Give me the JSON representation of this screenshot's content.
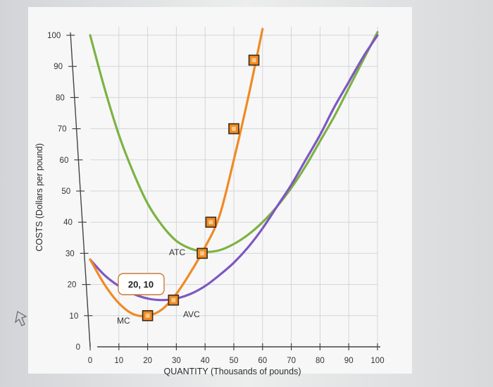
{
  "chart_data": {
    "type": "line",
    "xlabel": "QUANTITY (Thousands of pounds)",
    "ylabel": "COSTS (Dollars per pound)",
    "xlim": [
      0,
      100
    ],
    "ylim": [
      0,
      100
    ],
    "x_ticks": [
      0,
      10,
      20,
      30,
      40,
      50,
      60,
      70,
      80,
      90,
      100
    ],
    "y_ticks": [
      0,
      10,
      20,
      30,
      40,
      50,
      60,
      70,
      80,
      90,
      100
    ],
    "grid": true,
    "series": [
      {
        "name": "ATC",
        "color": "#7cb342",
        "x": [
          0,
          5,
          10,
          15,
          20,
          25,
          30,
          35,
          40,
          45,
          50,
          55,
          60,
          65,
          70,
          75,
          80,
          85,
          90,
          95,
          100
        ],
        "y": [
          100,
          83,
          68,
          56,
          46,
          39,
          34,
          31.5,
          30.5,
          31,
          33,
          36,
          40,
          45,
          51,
          58,
          66,
          74,
          83,
          92,
          101
        ]
      },
      {
        "name": "AVC",
        "color": "#7e57c2",
        "x": [
          0,
          5,
          10,
          15,
          20,
          25,
          30,
          35,
          40,
          45,
          50,
          55,
          60,
          65,
          70,
          75,
          80,
          85,
          90,
          95,
          100
        ],
        "y": [
          28,
          23,
          19.5,
          17,
          15.5,
          15,
          15.5,
          17,
          19.5,
          23,
          27,
          32,
          38,
          45,
          52,
          60,
          68,
          77,
          85,
          93,
          100
        ]
      },
      {
        "name": "MC",
        "color": "#f08a24",
        "x": [
          0,
          5,
          10,
          15,
          20,
          25,
          30,
          35,
          40,
          45,
          50,
          55,
          60
        ],
        "y": [
          28,
          20,
          14,
          10.5,
          10,
          12,
          17,
          24,
          32,
          42,
          60,
          80,
          102
        ]
      }
    ],
    "markers": [
      {
        "x": 20,
        "y": 10
      },
      {
        "x": 29,
        "y": 15
      },
      {
        "x": 39,
        "y": 30
      },
      {
        "x": 42,
        "y": 40
      },
      {
        "x": 50,
        "y": 70
      },
      {
        "x": 57,
        "y": 92
      }
    ],
    "labels": {
      "ATC": "ATC",
      "AVC": "AVC",
      "MC": "MC"
    },
    "tooltip": "20, 10"
  }
}
